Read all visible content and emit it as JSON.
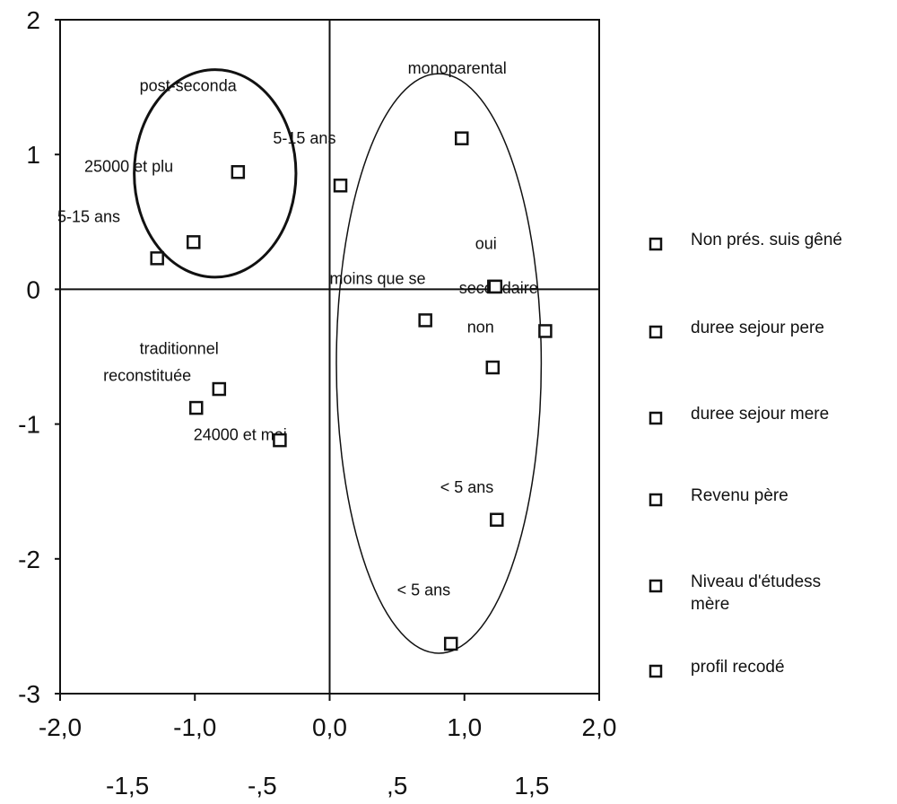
{
  "chart_data": {
    "type": "scatter",
    "title": "",
    "xlabel": "",
    "ylabel": "",
    "xlim": [
      -2.0,
      2.0
    ],
    "ylim": [
      -3.0,
      2.0
    ],
    "grid": false,
    "legend_position": "right",
    "x_ticks_top_row": [
      "-2,0",
      "-1,0",
      "0,0",
      "1,0",
      "2,0"
    ],
    "x_ticks_bottom_row": [
      "-1,5",
      "-,5",
      ",5",
      "1,5"
    ],
    "y_ticks": [
      "2",
      "1",
      "0",
      "-1",
      "-2",
      "-3"
    ],
    "reference_lines": [
      {
        "axis": "x",
        "value": 0
      },
      {
        "axis": "y",
        "value": 0
      }
    ],
    "points": [
      {
        "x": -0.68,
        "y": 0.87
      },
      {
        "x": 0.08,
        "y": 0.77
      },
      {
        "x": 0.98,
        "y": 1.12
      },
      {
        "x": -1.28,
        "y": 0.23
      },
      {
        "x": -1.01,
        "y": 0.35
      },
      {
        "x": 1.22,
        "y": 0.02
      },
      {
        "x": 1.23,
        "y": 0.02
      },
      {
        "x": 0.71,
        "y": -0.23
      },
      {
        "x": 1.6,
        "y": -0.31
      },
      {
        "x": 1.21,
        "y": -0.58
      },
      {
        "x": -0.82,
        "y": -0.74
      },
      {
        "x": -0.99,
        "y": -0.88
      },
      {
        "x": -0.37,
        "y": -1.12
      },
      {
        "x": 1.24,
        "y": -1.71
      },
      {
        "x": 0.9,
        "y": -2.63
      }
    ],
    "annotations": [
      {
        "text": "monoparental",
        "x": 0.58,
        "y": 1.6
      },
      {
        "text": "post-seconda",
        "x": -1.41,
        "y": 1.47
      },
      {
        "text": "5-15 ans",
        "x": -0.42,
        "y": 1.08
      },
      {
        "text": "25000 et plu",
        "x": -1.82,
        "y": 0.87
      },
      {
        "text": "5-15 ans",
        "x": -2.02,
        "y": 0.5
      },
      {
        "text": "oui",
        "x": 1.08,
        "y": 0.3
      },
      {
        "text": "moins que se",
        "x": 0.0,
        "y": 0.04
      },
      {
        "text": "secondaire",
        "x": 0.96,
        "y": -0.03
      },
      {
        "text": "non",
        "x": 1.02,
        "y": -0.32
      },
      {
        "text": "traditionnel",
        "x": -1.41,
        "y": -0.48
      },
      {
        "text": "reconstituée",
        "x": -1.68,
        "y": -0.68
      },
      {
        "text": "24000 et moi",
        "x": -1.01,
        "y": -1.12
      },
      {
        "text": "< 5 ans",
        "x": 0.82,
        "y": -1.51
      },
      {
        "text": "< 5 ans",
        "x": 0.5,
        "y": -2.27
      }
    ],
    "ellipses": [
      {
        "cx": -0.85,
        "cy": 0.86,
        "rx": 0.6,
        "ry": 0.77,
        "stroke_weight": "bold"
      },
      {
        "cx": 0.81,
        "cy": -0.55,
        "rx": 0.76,
        "ry": 2.15,
        "stroke_weight": "thin"
      }
    ],
    "legend": [
      "Non prés. suis gêné",
      "duree sejour pere",
      "duree sejour mere",
      "Revenu père",
      "Niveau d'étudess mère",
      "profil recodé"
    ]
  }
}
